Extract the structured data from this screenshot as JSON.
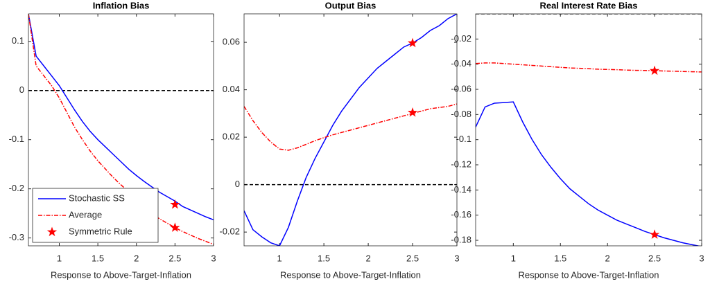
{
  "chart_data": [
    {
      "type": "line",
      "title": "Inflation Bias",
      "xlabel": "Response to Above-Target-Inflation",
      "x": [
        0.6,
        0.7,
        0.8,
        0.9,
        1.0,
        1.1,
        1.2,
        1.3,
        1.4,
        1.5,
        1.6,
        1.7,
        1.8,
        1.9,
        2.0,
        2.1,
        2.2,
        2.3,
        2.4,
        2.5,
        2.6,
        2.7,
        2.8,
        2.9,
        3.0
      ],
      "series": [
        {
          "name": "Stochastic SS",
          "color": "#0000ff",
          "linestyle": "solid",
          "values": [
            0.156,
            0.07,
            0.05,
            0.03,
            0.01,
            -0.015,
            -0.04,
            -0.063,
            -0.083,
            -0.1,
            -0.115,
            -0.13,
            -0.145,
            -0.16,
            -0.173,
            -0.185,
            -0.196,
            -0.207,
            -0.216,
            -0.225,
            -0.236,
            -0.243,
            -0.25,
            -0.257,
            -0.263
          ]
        },
        {
          "name": "Average",
          "color": "#ff0000",
          "linestyle": "dashdot",
          "values": [
            0.156,
            0.05,
            0.03,
            0.01,
            -0.015,
            -0.045,
            -0.075,
            -0.1,
            -0.123,
            -0.143,
            -0.16,
            -0.177,
            -0.192,
            -0.206,
            -0.228,
            -0.24,
            -0.251,
            -0.261,
            -0.27,
            -0.279,
            -0.287,
            -0.294,
            -0.301,
            -0.307,
            -0.313
          ]
        },
        {
          "name": "Symmetric Rule",
          "color": "#ff0000",
          "marker": "star",
          "x": [
            2.5,
            2.5
          ],
          "values": [
            -0.232,
            -0.279
          ]
        }
      ],
      "reference_line": 0,
      "legend": "lower left",
      "xlim": [
        0.6,
        3
      ],
      "xticks": [
        1,
        1.5,
        2,
        2.5,
        3
      ],
      "ylim": [
        -0.316,
        0.156
      ],
      "yticks": [
        -0.3,
        -0.2,
        -0.1,
        0,
        0.1
      ]
    },
    {
      "type": "line",
      "title": "Output Bias",
      "xlabel": "Response to Above-Target-Inflation",
      "x": [
        0.6,
        0.7,
        0.8,
        0.9,
        1.0,
        1.1,
        1.2,
        1.3,
        1.4,
        1.5,
        1.6,
        1.7,
        1.8,
        1.9,
        2.0,
        2.1,
        2.2,
        2.3,
        2.4,
        2.5,
        2.6,
        2.7,
        2.8,
        2.9,
        3.0
      ],
      "series": [
        {
          "color": "#0000ff",
          "linestyle": "solid",
          "values": [
            -0.011,
            -0.019,
            -0.022,
            -0.0245,
            -0.0258,
            -0.018,
            -0.007,
            0.003,
            0.011,
            0.018,
            0.025,
            0.031,
            0.036,
            0.041,
            0.045,
            0.049,
            0.052,
            0.055,
            0.058,
            0.0597,
            0.062,
            0.065,
            0.067,
            0.07,
            0.072
          ]
        },
        {
          "color": "#ff0000",
          "linestyle": "dashdot",
          "values": [
            0.033,
            0.027,
            0.022,
            0.018,
            0.015,
            0.0145,
            0.0155,
            0.017,
            0.0185,
            0.0198,
            0.021,
            0.022,
            0.023,
            0.024,
            0.025,
            0.026,
            0.027,
            0.028,
            0.029,
            0.03,
            0.031,
            0.032,
            0.0325,
            0.033,
            0.034
          ]
        },
        {
          "color": "#ff0000",
          "marker": "star",
          "x": [
            2.5,
            2.5
          ],
          "values": [
            0.0597,
            0.0304
          ]
        }
      ],
      "reference_line": 0,
      "xlim": [
        0.6,
        3
      ],
      "xticks": [
        1,
        1.5,
        2,
        2.5,
        3
      ],
      "ylim": [
        -0.0258,
        0.072
      ],
      "yticks": [
        -0.02,
        0,
        0.02,
        0.04,
        0.06
      ]
    },
    {
      "type": "line",
      "title": "Real Interest Rate Bias",
      "xlabel": "Response to Above-Target-Inflation",
      "x": [
        0.6,
        0.7,
        0.8,
        0.9,
        1.0,
        1.1,
        1.2,
        1.3,
        1.4,
        1.5,
        1.6,
        1.7,
        1.8,
        1.9,
        2.0,
        2.1,
        2.2,
        2.3,
        2.4,
        2.5,
        2.6,
        2.7,
        2.8,
        2.9,
        3.0
      ],
      "series": [
        {
          "color": "#0000ff",
          "linestyle": "solid",
          "values": [
            -0.09,
            -0.074,
            -0.071,
            -0.0705,
            -0.07,
            -0.086,
            -0.1,
            -0.112,
            -0.122,
            -0.131,
            -0.139,
            -0.145,
            -0.151,
            -0.156,
            -0.16,
            -0.164,
            -0.167,
            -0.17,
            -0.173,
            -0.1755,
            -0.178,
            -0.18,
            -0.182,
            -0.1835,
            -0.185
          ]
        },
        {
          "color": "#ff0000",
          "linestyle": "dashdot",
          "values": [
            -0.0395,
            -0.039,
            -0.039,
            -0.0395,
            -0.04,
            -0.0405,
            -0.041,
            -0.0415,
            -0.042,
            -0.0425,
            -0.043,
            -0.0433,
            -0.0436,
            -0.044,
            -0.0442,
            -0.0444,
            -0.0447,
            -0.0449,
            -0.045,
            -0.0452,
            -0.0454,
            -0.0456,
            -0.0458,
            -0.046,
            -0.0462
          ]
        },
        {
          "color": "#ff0000",
          "marker": "star",
          "x": [
            2.5,
            2.5
          ],
          "values": [
            -0.0452,
            -0.1755
          ]
        }
      ],
      "reference_line": 0,
      "xlim": [
        0.6,
        3
      ],
      "xticks": [
        1,
        1.5,
        2,
        2.5,
        3
      ],
      "ylim": [
        -0.1844,
        0
      ],
      "yticks": [
        -0.18,
        -0.16,
        -0.14,
        -0.12,
        -0.1,
        -0.08,
        -0.06,
        -0.04,
        -0.02
      ]
    }
  ]
}
